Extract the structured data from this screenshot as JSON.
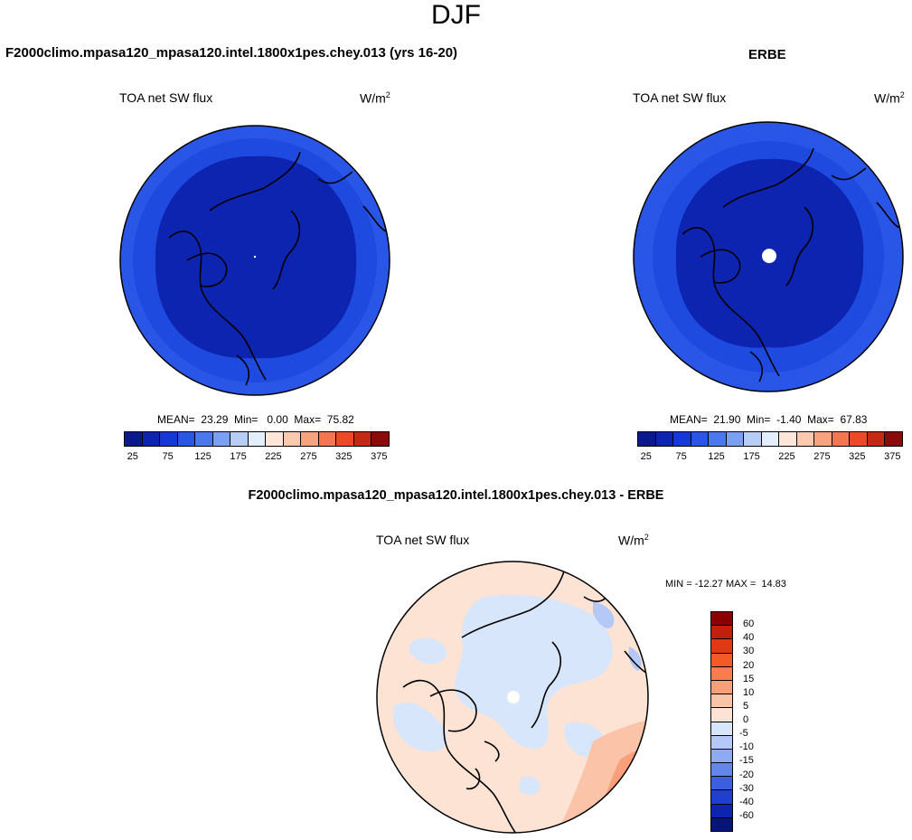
{
  "title": "DJF",
  "panels": [
    {
      "title": "F2000climo.mpasa120_mpasa120.intel.1800x1pes.chey.013 (yrs 16-20)",
      "variable": "TOA net SW flux",
      "units": "W/m",
      "units_sup": "2",
      "stats": {
        "mean": "23.29",
        "min": "0.00",
        "max": "75.82"
      },
      "colorbar_ticks": [
        "25",
        "75",
        "125",
        "175",
        "225",
        "275",
        "325",
        "375"
      ]
    },
    {
      "title": "ERBE",
      "variable": "TOA net SW flux",
      "units": "W/m",
      "units_sup": "2",
      "stats": {
        "mean": "21.90",
        "min": "-1.40",
        "max": "67.83"
      },
      "colorbar_ticks": [
        "25",
        "75",
        "125",
        "175",
        "225",
        "275",
        "325",
        "375"
      ]
    },
    {
      "title": "F2000climo.mpasa120_mpasa120.intel.1800x1pes.chey.013 - ERBE",
      "variable": "TOA net SW flux",
      "units": "W/m",
      "units_sup": "2",
      "stats_text": "MIN = -12.27 MAX =  14.83",
      "colorbar_ticks": [
        "60",
        "40",
        "30",
        "20",
        "15",
        "10",
        "5",
        "0",
        "-5",
        "-10",
        "-15",
        "-20",
        "-30",
        "-40",
        "-60"
      ]
    }
  ],
  "colors": {
    "abs_scale": [
      "#0a1a8c",
      "#0d24b0",
      "#1439d6",
      "#2a56e8",
      "#4a78ef",
      "#7aa0f4",
      "#b6cdf8",
      "#e3eefc",
      "#fde6d8",
      "#fbc9ad",
      "#f8a37f",
      "#f47650",
      "#ec4a26",
      "#c42a12",
      "#8b0a0a"
    ],
    "diff_scale": [
      "#8b0000",
      "#c1200c",
      "#e03a14",
      "#f35a26",
      "#f77d4d",
      "#f9a07a",
      "#fbc4a8",
      "#fde3d3",
      "#d7e6fb",
      "#b4c9f7",
      "#8eaaf2",
      "#6485ea",
      "#3b5fe0",
      "#1e3fd0",
      "#0d24b0",
      "#071478"
    ]
  },
  "chart_data": [
    {
      "type": "heatmap",
      "projection": "north-polar-stereographic",
      "title": "F2000climo.mpasa120_mpasa120.intel.1800x1pes.chey.013 (yrs 16-20)",
      "variable": "TOA net SW flux",
      "mean": 23.29,
      "min": 0.0,
      "max": 75.82,
      "levels": [
        25,
        50,
        75,
        100,
        125,
        150,
        175,
        200,
        225,
        250,
        275,
        300,
        325,
        350,
        375
      ]
    },
    {
      "type": "heatmap",
      "projection": "north-polar-stereographic",
      "title": "ERBE",
      "variable": "TOA net SW flux",
      "mean": 21.9,
      "min": -1.4,
      "max": 67.83,
      "levels": [
        25,
        50,
        75,
        100,
        125,
        150,
        175,
        200,
        225,
        250,
        275,
        300,
        325,
        350,
        375
      ]
    },
    {
      "type": "heatmap",
      "projection": "north-polar-stereographic",
      "title": "F2000climo.mpasa120_mpasa120.intel.1800x1pes.chey.013 - ERBE",
      "variable": "TOA net SW flux",
      "min": -12.27,
      "max": 14.83,
      "levels": [
        -60,
        -40,
        -30,
        -20,
        -15,
        -10,
        -5,
        0,
        5,
        10,
        15,
        20,
        30,
        40,
        60
      ]
    }
  ]
}
